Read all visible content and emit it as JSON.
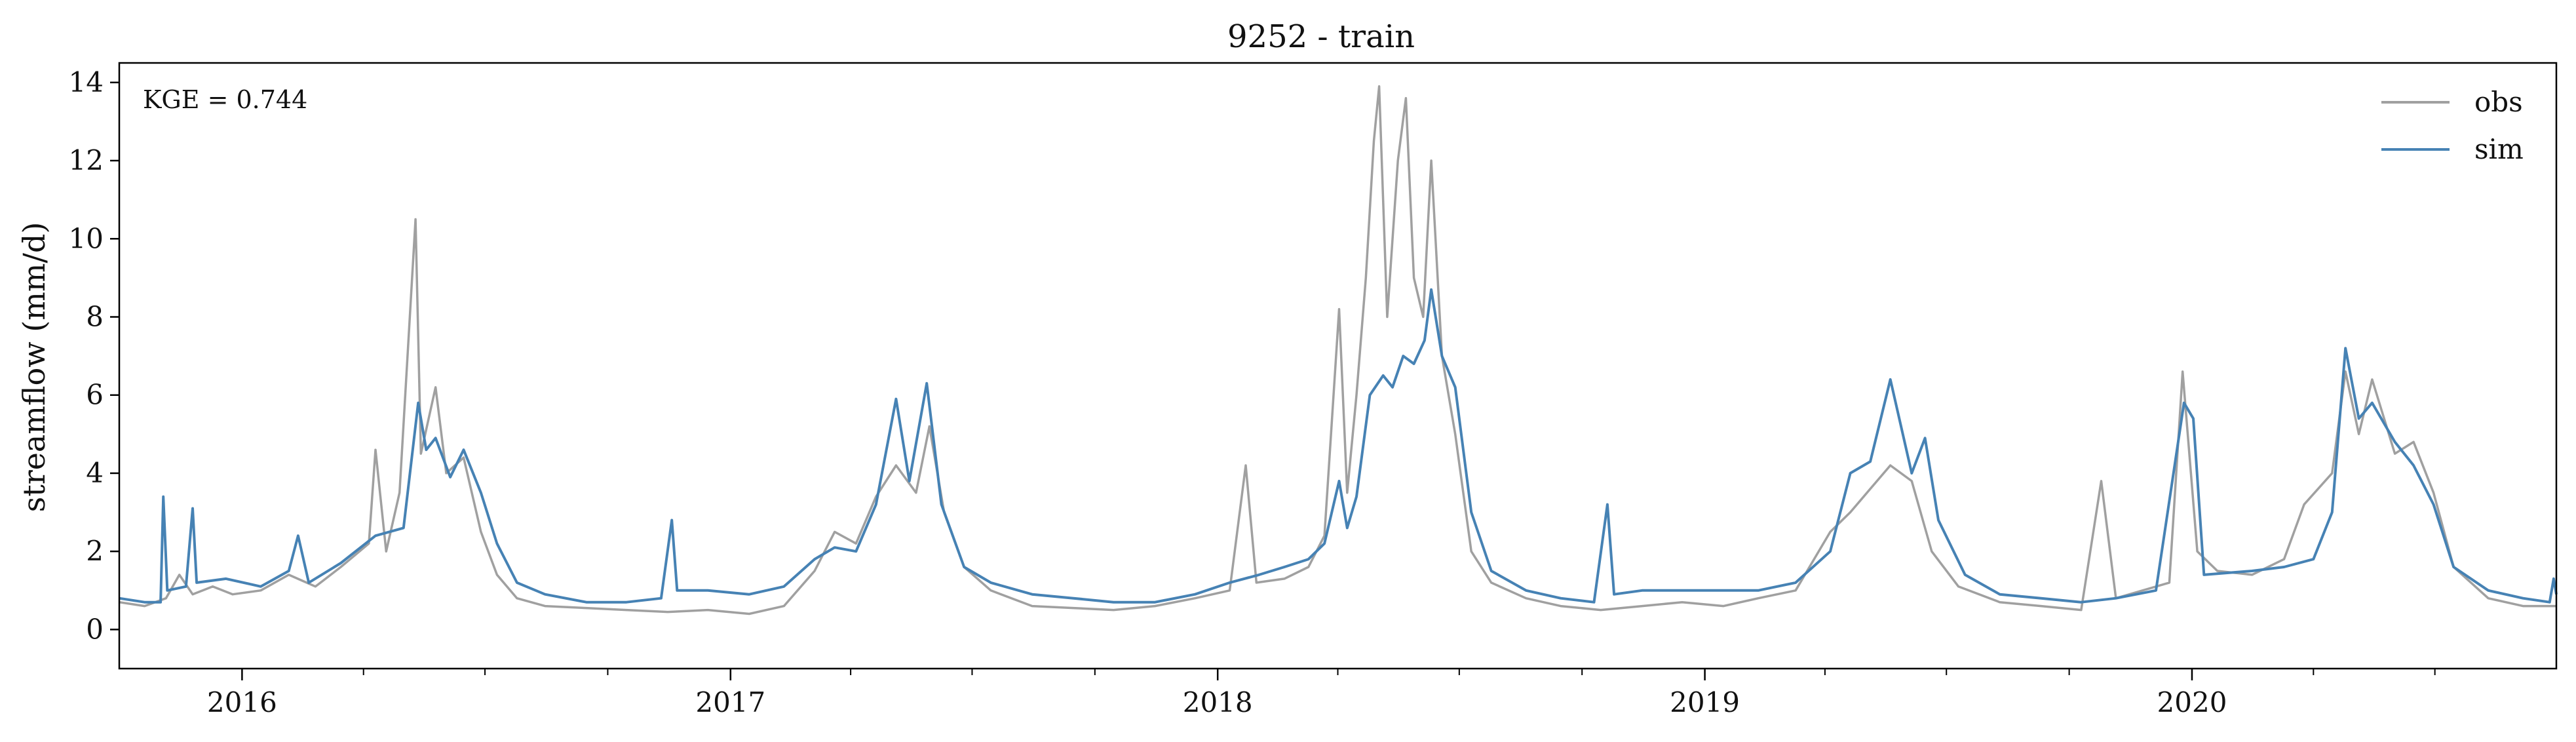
{
  "chart_data": {
    "type": "line",
    "title": "9252 - train",
    "xlabel": "",
    "ylabel": "streamflow (mm/d)",
    "annotation": "KGE = 0.744",
    "x_range": [
      "2015-10-01",
      "2020-09-30"
    ],
    "ylim": [
      -1,
      14.5
    ],
    "y_ticks": [
      0,
      2,
      4,
      6,
      8,
      10,
      12,
      14
    ],
    "y_tick_labels": [
      "0",
      "2",
      "4",
      "6",
      "8",
      "10",
      "12",
      "14"
    ],
    "x_ticks": [
      "2016-01-01",
      "2017-01-01",
      "2018-01-01",
      "2019-01-01",
      "2020-01-01"
    ],
    "x_tick_labels": [
      "2016",
      "2017",
      "2018",
      "2019",
      "2020"
    ],
    "grid": false,
    "legend_position": "top-right",
    "series": [
      {
        "name": "obs",
        "color": "#a0a0a0",
        "points": [
          [
            "2015-10-01",
            0.7
          ],
          [
            "2015-10-20",
            0.6
          ],
          [
            "2015-11-05",
            0.8
          ],
          [
            "2015-11-15",
            1.4
          ],
          [
            "2015-11-25",
            0.9
          ],
          [
            "2015-12-10",
            1.1
          ],
          [
            "2015-12-25",
            0.9
          ],
          [
            "2016-01-15",
            1.0
          ],
          [
            "2016-02-05",
            1.4
          ],
          [
            "2016-02-25",
            1.1
          ],
          [
            "2016-03-15",
            1.6
          ],
          [
            "2016-04-05",
            2.2
          ],
          [
            "2016-04-10",
            4.6
          ],
          [
            "2016-04-18",
            2.0
          ],
          [
            "2016-04-28",
            3.5
          ],
          [
            "2016-05-10",
            10.5
          ],
          [
            "2016-05-14",
            4.5
          ],
          [
            "2016-05-25",
            6.2
          ],
          [
            "2016-06-02",
            4.0
          ],
          [
            "2016-06-15",
            4.4
          ],
          [
            "2016-06-28",
            2.5
          ],
          [
            "2016-07-10",
            1.4
          ],
          [
            "2016-07-25",
            0.8
          ],
          [
            "2016-08-15",
            0.6
          ],
          [
            "2016-09-15",
            0.55
          ],
          [
            "2016-10-15",
            0.5
          ],
          [
            "2016-11-15",
            0.45
          ],
          [
            "2016-12-15",
            0.5
          ],
          [
            "2017-01-15",
            0.4
          ],
          [
            "2017-02-10",
            0.6
          ],
          [
            "2017-03-05",
            1.5
          ],
          [
            "2017-03-20",
            2.5
          ],
          [
            "2017-04-05",
            2.2
          ],
          [
            "2017-04-20",
            3.4
          ],
          [
            "2017-05-05",
            4.2
          ],
          [
            "2017-05-20",
            3.5
          ],
          [
            "2017-05-30",
            5.2
          ],
          [
            "2017-06-10",
            3.0
          ],
          [
            "2017-06-25",
            1.6
          ],
          [
            "2017-07-15",
            1.0
          ],
          [
            "2017-08-15",
            0.6
          ],
          [
            "2017-09-15",
            0.55
          ],
          [
            "2017-10-15",
            0.5
          ],
          [
            "2017-11-15",
            0.6
          ],
          [
            "2017-12-15",
            0.8
          ],
          [
            "2018-01-10",
            1.0
          ],
          [
            "2018-01-22",
            4.2
          ],
          [
            "2018-01-30",
            1.2
          ],
          [
            "2018-02-20",
            1.3
          ],
          [
            "2018-03-10",
            1.6
          ],
          [
            "2018-03-22",
            2.4
          ],
          [
            "2018-04-02",
            8.2
          ],
          [
            "2018-04-08",
            3.5
          ],
          [
            "2018-04-15",
            6.0
          ],
          [
            "2018-04-22",
            9.0
          ],
          [
            "2018-04-28",
            12.5
          ],
          [
            "2018-05-02",
            13.9
          ],
          [
            "2018-05-08",
            8.0
          ],
          [
            "2018-05-16",
            12.0
          ],
          [
            "2018-05-22",
            13.6
          ],
          [
            "2018-05-28",
            9.0
          ],
          [
            "2018-06-04",
            8.0
          ],
          [
            "2018-06-10",
            12.0
          ],
          [
            "2018-06-18",
            7.0
          ],
          [
            "2018-06-28",
            5.0
          ],
          [
            "2018-07-10",
            2.0
          ],
          [
            "2018-07-25",
            1.2
          ],
          [
            "2018-08-20",
            0.8
          ],
          [
            "2018-09-15",
            0.6
          ],
          [
            "2018-10-15",
            0.5
          ],
          [
            "2018-11-15",
            0.6
          ],
          [
            "2018-12-15",
            0.7
          ],
          [
            "2019-01-15",
            0.6
          ],
          [
            "2019-02-10",
            0.8
          ],
          [
            "2019-03-10",
            1.0
          ],
          [
            "2019-04-05",
            2.5
          ],
          [
            "2019-04-20",
            3.0
          ],
          [
            "2019-05-05",
            3.6
          ],
          [
            "2019-05-20",
            4.2
          ],
          [
            "2019-06-05",
            3.8
          ],
          [
            "2019-06-20",
            2.0
          ],
          [
            "2019-07-10",
            1.1
          ],
          [
            "2019-08-10",
            0.7
          ],
          [
            "2019-09-10",
            0.6
          ],
          [
            "2019-10-10",
            0.5
          ],
          [
            "2019-10-25",
            3.8
          ],
          [
            "2019-11-05",
            0.8
          ],
          [
            "2019-11-25",
            1.0
          ],
          [
            "2019-12-15",
            1.2
          ],
          [
            "2019-12-25",
            6.6
          ],
          [
            "2020-01-05",
            2.0
          ],
          [
            "2020-01-20",
            1.5
          ],
          [
            "2020-02-15",
            1.4
          ],
          [
            "2020-03-10",
            1.8
          ],
          [
            "2020-03-25",
            3.2
          ],
          [
            "2020-04-15",
            4.0
          ],
          [
            "2020-04-25",
            6.6
          ],
          [
            "2020-05-05",
            5.0
          ],
          [
            "2020-05-15",
            6.4
          ],
          [
            "2020-06-01",
            4.5
          ],
          [
            "2020-06-15",
            4.8
          ],
          [
            "2020-06-30",
            3.5
          ],
          [
            "2020-07-15",
            1.6
          ],
          [
            "2020-08-10",
            0.8
          ],
          [
            "2020-09-05",
            0.6
          ],
          [
            "2020-09-30",
            0.6
          ]
        ]
      },
      {
        "name": "sim",
        "color": "#4682b4",
        "points": [
          [
            "2015-10-01",
            0.8
          ],
          [
            "2015-10-20",
            0.7
          ],
          [
            "2015-11-01",
            0.7
          ],
          [
            "2015-11-03",
            3.4
          ],
          [
            "2015-11-06",
            1.0
          ],
          [
            "2015-11-20",
            1.1
          ],
          [
            "2015-11-25",
            3.1
          ],
          [
            "2015-11-28",
            1.2
          ],
          [
            "2015-12-20",
            1.3
          ],
          [
            "2016-01-15",
            1.1
          ],
          [
            "2016-02-05",
            1.5
          ],
          [
            "2016-02-12",
            2.4
          ],
          [
            "2016-02-20",
            1.2
          ],
          [
            "2016-03-15",
            1.7
          ],
          [
            "2016-04-10",
            2.4
          ],
          [
            "2016-05-01",
            2.6
          ],
          [
            "2016-05-12",
            5.8
          ],
          [
            "2016-05-18",
            4.6
          ],
          [
            "2016-05-25",
            4.9
          ],
          [
            "2016-06-05",
            3.9
          ],
          [
            "2016-06-15",
            4.6
          ],
          [
            "2016-06-28",
            3.5
          ],
          [
            "2016-07-10",
            2.2
          ],
          [
            "2016-07-25",
            1.2
          ],
          [
            "2016-08-15",
            0.9
          ],
          [
            "2016-09-15",
            0.7
          ],
          [
            "2016-10-15",
            0.7
          ],
          [
            "2016-11-10",
            0.8
          ],
          [
            "2016-11-18",
            2.8
          ],
          [
            "2016-11-22",
            1.0
          ],
          [
            "2016-12-15",
            1.0
          ],
          [
            "2017-01-15",
            0.9
          ],
          [
            "2017-02-10",
            1.1
          ],
          [
            "2017-03-05",
            1.8
          ],
          [
            "2017-03-20",
            2.1
          ],
          [
            "2017-04-05",
            2.0
          ],
          [
            "2017-04-20",
            3.2
          ],
          [
            "2017-05-05",
            5.9
          ],
          [
            "2017-05-15",
            3.8
          ],
          [
            "2017-05-28",
            6.3
          ],
          [
            "2017-06-08",
            3.2
          ],
          [
            "2017-06-25",
            1.6
          ],
          [
            "2017-07-15",
            1.2
          ],
          [
            "2017-08-15",
            0.9
          ],
          [
            "2017-09-15",
            0.8
          ],
          [
            "2017-10-15",
            0.7
          ],
          [
            "2017-11-15",
            0.7
          ],
          [
            "2017-12-15",
            0.9
          ],
          [
            "2018-01-10",
            1.2
          ],
          [
            "2018-02-01",
            1.4
          ],
          [
            "2018-02-20",
            1.6
          ],
          [
            "2018-03-10",
            1.8
          ],
          [
            "2018-03-22",
            2.2
          ],
          [
            "2018-04-02",
            3.8
          ],
          [
            "2018-04-08",
            2.6
          ],
          [
            "2018-04-15",
            3.4
          ],
          [
            "2018-04-25",
            6.0
          ],
          [
            "2018-05-05",
            6.5
          ],
          [
            "2018-05-12",
            6.2
          ],
          [
            "2018-05-20",
            7.0
          ],
          [
            "2018-05-28",
            6.8
          ],
          [
            "2018-06-05",
            7.4
          ],
          [
            "2018-06-10",
            8.7
          ],
          [
            "2018-06-18",
            7.0
          ],
          [
            "2018-06-28",
            6.2
          ],
          [
            "2018-07-10",
            3.0
          ],
          [
            "2018-07-25",
            1.5
          ],
          [
            "2018-08-20",
            1.0
          ],
          [
            "2018-09-15",
            0.8
          ],
          [
            "2018-10-10",
            0.7
          ],
          [
            "2018-10-20",
            3.2
          ],
          [
            "2018-10-25",
            0.9
          ],
          [
            "2018-11-15",
            1.0
          ],
          [
            "2018-12-15",
            1.0
          ],
          [
            "2019-01-15",
            1.0
          ],
          [
            "2019-02-10",
            1.0
          ],
          [
            "2019-03-10",
            1.2
          ],
          [
            "2019-04-05",
            2.0
          ],
          [
            "2019-04-20",
            4.0
          ],
          [
            "2019-05-05",
            4.3
          ],
          [
            "2019-05-20",
            6.4
          ],
          [
            "2019-06-05",
            4.0
          ],
          [
            "2019-06-15",
            4.9
          ],
          [
            "2019-06-25",
            2.8
          ],
          [
            "2019-07-15",
            1.4
          ],
          [
            "2019-08-10",
            0.9
          ],
          [
            "2019-09-10",
            0.8
          ],
          [
            "2019-10-10",
            0.7
          ],
          [
            "2019-11-05",
            0.8
          ],
          [
            "2019-12-05",
            1.0
          ],
          [
            "2019-12-26",
            5.8
          ],
          [
            "2020-01-02",
            5.4
          ],
          [
            "2020-01-10",
            1.4
          ],
          [
            "2020-02-15",
            1.5
          ],
          [
            "2020-03-10",
            1.6
          ],
          [
            "2020-04-01",
            1.8
          ],
          [
            "2020-04-15",
            3.0
          ],
          [
            "2020-04-25",
            7.2
          ],
          [
            "2020-05-05",
            5.4
          ],
          [
            "2020-05-15",
            5.8
          ],
          [
            "2020-06-01",
            4.8
          ],
          [
            "2020-06-15",
            4.2
          ],
          [
            "2020-06-30",
            3.2
          ],
          [
            "2020-07-15",
            1.6
          ],
          [
            "2020-08-10",
            1.0
          ],
          [
            "2020-09-05",
            0.8
          ],
          [
            "2020-09-25",
            0.7
          ],
          [
            "2020-09-28",
            1.3
          ],
          [
            "2020-09-30",
            0.9
          ]
        ]
      }
    ]
  }
}
